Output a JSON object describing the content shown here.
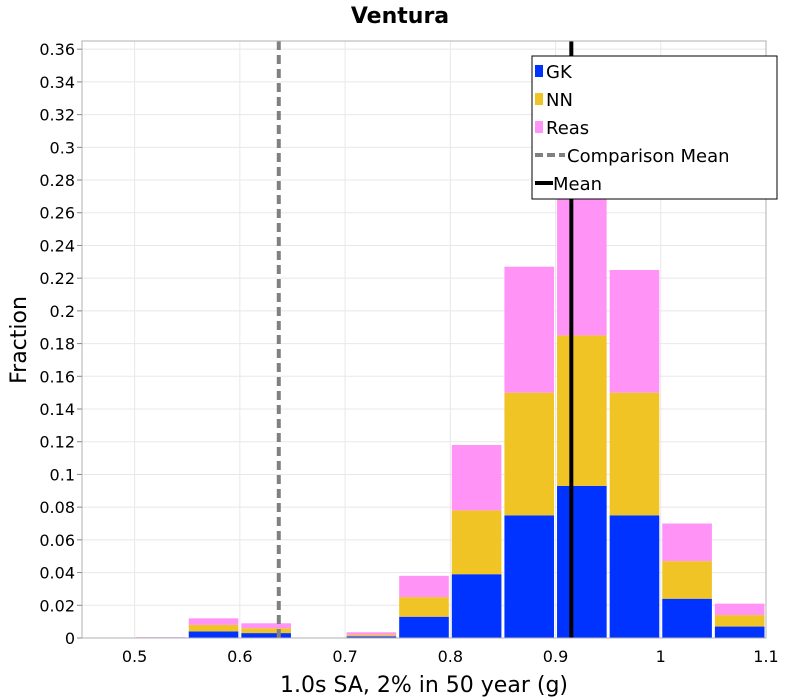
{
  "chart_data": {
    "type": "bar",
    "stacked": true,
    "title": "Ventura",
    "xlabel": "1.0s SA, 2% in 50 year (g)",
    "ylabel": "Fraction",
    "xlim": [
      0.45,
      1.1
    ],
    "ylim": [
      0,
      0.365
    ],
    "x_ticks": [
      "0.5",
      "0.6",
      "0.7",
      "0.8",
      "0.9",
      "1",
      "1.1"
    ],
    "y_ticks": [
      "0",
      "0.02",
      "0.04",
      "0.06",
      "0.08",
      "0.1",
      "0.12",
      "0.14",
      "0.16",
      "0.18",
      "0.2",
      "0.22",
      "0.24",
      "0.26",
      "0.28",
      "0.3",
      "0.32",
      "0.34",
      "0.36"
    ],
    "bin_centers": [
      0.525,
      0.575,
      0.625,
      0.675,
      0.725,
      0.775,
      0.825,
      0.875,
      0.925,
      0.975,
      1.025,
      1.075
    ],
    "bin_width": 0.05,
    "series": [
      {
        "name": "GK",
        "color": "#0033ff",
        "values": [
          0,
          0.004,
          0.003,
          0,
          0.001,
          0.013,
          0.039,
          0.075,
          0.093,
          0.075,
          0.024,
          0.007
        ]
      },
      {
        "name": "NN",
        "color": "#f0c424",
        "values": [
          0,
          0.004,
          0.003,
          0,
          0.001,
          0.012,
          0.039,
          0.075,
          0.092,
          0.075,
          0.023,
          0.007
        ]
      },
      {
        "name": "Reas",
        "color": "#ff94f6",
        "values": [
          0.0005,
          0.004,
          0.003,
          0,
          0.0015,
          0.013,
          0.04,
          0.077,
          0.092,
          0.075,
          0.023,
          0.007
        ]
      }
    ],
    "comparison_mean": {
      "name": "Comparison Mean",
      "value": 0.637,
      "color": "#808080",
      "style": "dashed"
    },
    "mean": {
      "name": "Mean",
      "value": 0.915,
      "color": "#000000",
      "style": "solid"
    },
    "legend": [
      "GK",
      "NN",
      "Reas",
      "Comparison Mean",
      "Mean"
    ],
    "legend_position": "top-right",
    "grid": true
  }
}
